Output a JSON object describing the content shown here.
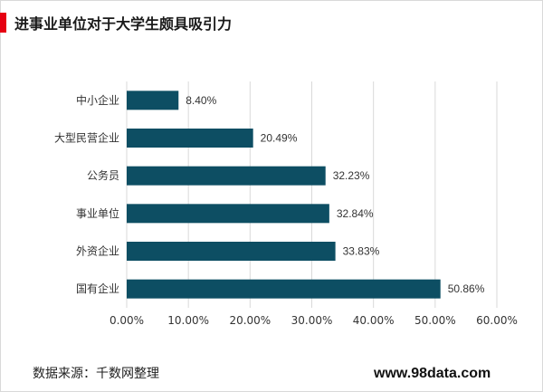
{
  "header": {
    "title": "进事业单位对于大学生颇具吸引力"
  },
  "colors": {
    "accent": "#e60012",
    "bar": "#0d4e63",
    "grid": "#d9d9d9"
  },
  "chart_data": {
    "type": "bar",
    "orientation": "horizontal",
    "categories": [
      "中小企业",
      "大型民营企业",
      "公务员",
      "事业单位",
      "外资企业",
      "国有企业"
    ],
    "values": [
      8.4,
      20.49,
      32.23,
      32.84,
      33.83,
      50.86
    ],
    "value_labels": [
      "8.40%",
      "20.49%",
      "32.23%",
      "32.84%",
      "33.83%",
      "50.86%"
    ],
    "xlim": [
      0,
      60
    ],
    "xticks": [
      "0.00%",
      "10.00%",
      "20.00%",
      "30.00%",
      "40.00%",
      "50.00%",
      "60.00%"
    ],
    "grid": true,
    "legend": "none"
  },
  "footer": {
    "source": "数据来源：千数网整理",
    "site": "www.98data.com"
  }
}
